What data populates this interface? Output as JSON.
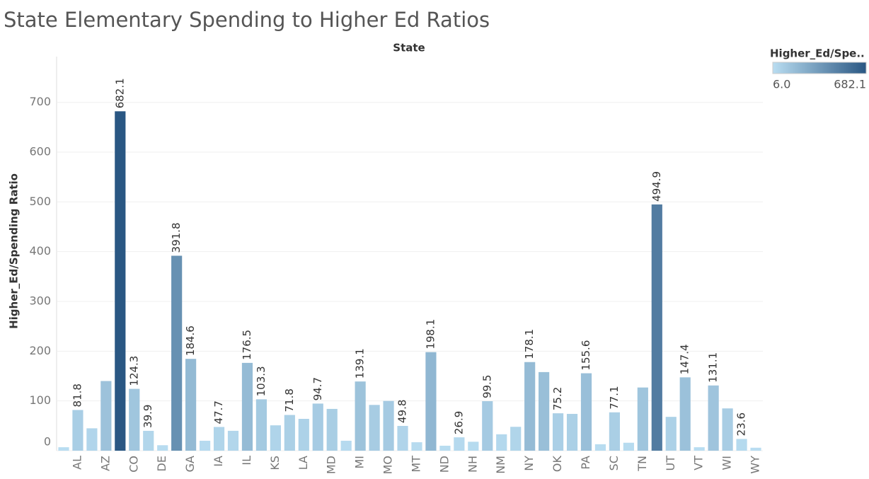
{
  "chart_data": {
    "type": "bar",
    "title": "State Elementary Spending to Higher Ed Ratios",
    "column_header": "State",
    "y_label": "Higher_Ed/Spending Ratio",
    "categories": [
      null,
      "AL",
      null,
      "AZ",
      null,
      "CO",
      null,
      "DE",
      null,
      "GA",
      null,
      "IA",
      null,
      "IL",
      null,
      "KS",
      null,
      "LA",
      null,
      "MD",
      null,
      "MI",
      null,
      "MO",
      null,
      "MT",
      null,
      "ND",
      null,
      "NH",
      null,
      "NM",
      null,
      "NY",
      null,
      "OK",
      null,
      "PA",
      null,
      "SC",
      null,
      "TN",
      null,
      "UT",
      null,
      "VT",
      null,
      "WI",
      null,
      "WY"
    ],
    "values": [
      7,
      81.8,
      45,
      140,
      682.1,
      124.3,
      39.9,
      11,
      391.8,
      184.6,
      20,
      47.7,
      40,
      176.5,
      103.3,
      51,
      71.8,
      64,
      94.7,
      84,
      20,
      139.1,
      92,
      100,
      49.8,
      17,
      198.1,
      10,
      26.9,
      18,
      99.5,
      33,
      48,
      178.1,
      158,
      75.2,
      74,
      155.6,
      13,
      77.1,
      16,
      127,
      494.9,
      68,
      147.4,
      7,
      131.1,
      85,
      23.6,
      6
    ],
    "value_labels": [
      null,
      "81.8",
      null,
      null,
      "682.1",
      "124.3",
      "39.9",
      null,
      "391.8",
      "184.6",
      null,
      "47.7",
      null,
      "176.5",
      "103.3",
      null,
      "71.8",
      null,
      "94.7",
      null,
      null,
      "139.1",
      null,
      null,
      "49.8",
      null,
      "198.1",
      null,
      "26.9",
      null,
      "99.5",
      null,
      null,
      "178.1",
      null,
      "75.2",
      null,
      "155.6",
      null,
      "77.1",
      null,
      null,
      "494.9",
      null,
      "147.4",
      null,
      "131.1",
      null,
      "23.6",
      null
    ],
    "ylim": [
      0,
      792
    ],
    "yticks": [
      0,
      100,
      200,
      300,
      400,
      500,
      600,
      700
    ],
    "grid": true,
    "legend": {
      "title": "Higher_Ed/Spe..",
      "min": {
        "value": 6,
        "label": "6.0"
      },
      "max": {
        "value": 682.1,
        "label": "682.1"
      },
      "colors": [
        "#b9ddf1",
        "#2a5783"
      ]
    }
  }
}
